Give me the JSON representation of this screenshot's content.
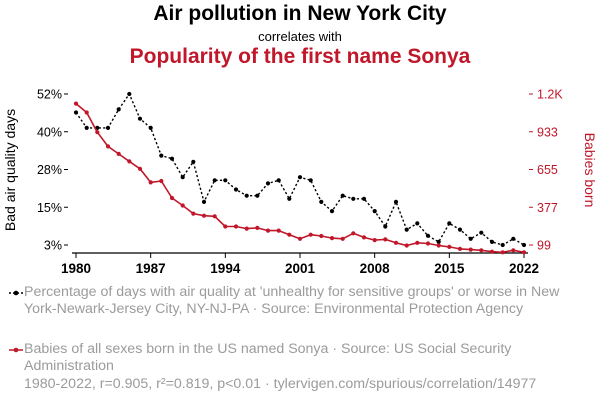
{
  "header": {
    "title": "Air pollution in New York City",
    "subtitle": "correlates with",
    "title2": "Popularity of the first name Sonya"
  },
  "chart_data": {
    "type": "line",
    "x": [
      1980,
      1981,
      1982,
      1983,
      1984,
      1985,
      1986,
      1987,
      1988,
      1989,
      1990,
      1991,
      1992,
      1993,
      1994,
      1995,
      1996,
      1997,
      1998,
      1999,
      2000,
      2001,
      2002,
      2003,
      2004,
      2005,
      2006,
      2007,
      2008,
      2009,
      2010,
      2011,
      2012,
      2013,
      2014,
      2015,
      2016,
      2017,
      2018,
      2019,
      2020,
      2021,
      2022
    ],
    "x_ticks": [
      "1980",
      "1987",
      "1994",
      "2001",
      "2008",
      "2015",
      "2022"
    ],
    "left_axis": {
      "label": "Bad air quality days",
      "ticks": [
        "52%",
        "40%",
        "28%",
        "15%",
        "3%"
      ],
      "range": [
        3,
        52
      ]
    },
    "right_axis": {
      "label": "Babies born",
      "ticks": [
        "1.2K",
        "933",
        "655",
        "377",
        "99"
      ],
      "range": [
        99,
        1211
      ]
    },
    "series": [
      {
        "name": "Percentage of days with air quality at 'unhealthy for sensitive groups' or worse in New York-Newark-Jersey City, NY-NJ-PA",
        "axis": "left",
        "color": "#000000",
        "style": "dotted-with-markers",
        "values": [
          46,
          41,
          41,
          41,
          47,
          52,
          44,
          41,
          32,
          31,
          25,
          30,
          17,
          24,
          24,
          21,
          19,
          19,
          23,
          24,
          18,
          25,
          24,
          17,
          14,
          19,
          18,
          18,
          14,
          9,
          17,
          8,
          10,
          6,
          4,
          10,
          8,
          5,
          7,
          4,
          3,
          5,
          3
        ]
      },
      {
        "name": "Babies of all sexes born in the US named Sonya",
        "axis": "right",
        "color": "#c0172a",
        "style": "solid-with-markers",
        "values": [
          1140,
          1075,
          930,
          825,
          770,
          715,
          660,
          560,
          570,
          445,
          390,
          330,
          315,
          310,
          235,
          235,
          220,
          225,
          205,
          205,
          175,
          145,
          175,
          165,
          150,
          145,
          185,
          155,
          135,
          140,
          115,
          95,
          115,
          110,
          95,
          85,
          70,
          65,
          60,
          50,
          45,
          60,
          45
        ]
      }
    ],
    "grid": false
  },
  "legend": {
    "series1": "Percentage of days with air quality at 'unhealthy for sensitive groups' or worse in New York-Newark-Jersey City, NY-NJ-PA · Source: Environmental Protection Agency",
    "series2": "Babies of all sexes born in the US named Sonya · Source: US Social Security Administration"
  },
  "footer": "1980-2022, r=0.905, r²=0.819, p<0.01 · tylervigen.com/spurious/correlation/14977"
}
